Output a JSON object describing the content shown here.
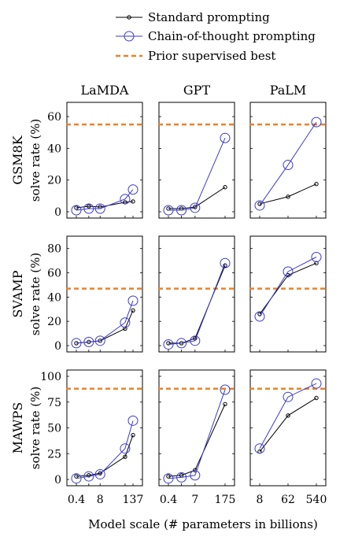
{
  "chart_data": {
    "type": "line",
    "legend": {
      "placement": "top",
      "entries": [
        {
          "label": "Standard prompting",
          "color": "#000000",
          "marker": "small-circle",
          "style": "solid"
        },
        {
          "label": "Chain-of-thought prompting",
          "color": "#3a3ad0",
          "marker": "large-circle",
          "style": "solid"
        },
        {
          "label": "Prior supervised best",
          "color": "#e8832a",
          "style": "dashed"
        }
      ]
    },
    "columns": [
      {
        "title": "LaMDA",
        "x_ticks": [
          "0.4",
          "8",
          "137"
        ]
      },
      {
        "title": "GPT",
        "x_ticks": [
          "0.4",
          "7",
          "175"
        ]
      },
      {
        "title": "PaLM",
        "x_ticks": [
          "8",
          "62",
          "540"
        ]
      }
    ],
    "rows": [
      {
        "dataset": "GSM8K",
        "ylabel": "solve rate (%)",
        "ylim": [
          0,
          65
        ],
        "y_ticks": [
          0,
          20,
          40,
          60
        ],
        "prior_best": 55
      },
      {
        "dataset": "SVAMP",
        "ylabel": "solve rate (%)",
        "ylim": [
          0,
          85
        ],
        "y_ticks": [
          0,
          20,
          40,
          60,
          80
        ],
        "prior_best": 47
      },
      {
        "dataset": "MAWPS",
        "ylabel": "solve rate (%)",
        "ylim": [
          0,
          100
        ],
        "y_ticks": [
          0,
          25,
          50,
          75,
          100
        ],
        "prior_best": 88
      }
    ],
    "xlabel": "Model scale (# parameters in billions)",
    "panels": [
      {
        "row": 0,
        "col": 0,
        "standard": [
          2.5,
          3.5,
          3,
          6,
          6.5
        ],
        "cot": [
          1,
          2,
          2,
          8,
          14
        ]
      },
      {
        "row": 0,
        "col": 1,
        "standard": [
          2,
          2,
          3,
          15.5
        ],
        "cot": [
          1,
          1,
          2.5,
          46.5
        ]
      },
      {
        "row": 0,
        "col": 2,
        "standard": [
          5,
          9.5,
          17.5
        ],
        "cot": [
          4,
          29.5,
          56.5
        ]
      },
      {
        "row": 1,
        "col": 0,
        "standard": [
          2,
          3,
          4,
          14,
          29
        ],
        "cot": [
          2,
          3,
          4,
          19,
          37
        ]
      },
      {
        "row": 1,
        "col": 1,
        "standard": [
          2,
          2,
          6,
          66
        ],
        "cot": [
          1,
          2,
          4,
          68
        ]
      },
      {
        "row": 1,
        "col": 2,
        "standard": [
          26,
          58,
          68
        ],
        "cot": [
          24,
          61,
          73
        ]
      },
      {
        "row": 2,
        "col": 0,
        "standard": [
          3,
          4,
          6,
          22,
          43
        ],
        "cot": [
          1,
          3,
          5,
          30,
          57
        ]
      },
      {
        "row": 2,
        "col": 1,
        "standard": [
          3,
          4,
          9,
          73
        ],
        "cot": [
          1,
          2,
          4,
          87
        ]
      },
      {
        "row": 2,
        "col": 2,
        "standard": [
          27,
          62,
          79
        ],
        "cot": [
          30,
          80,
          93
        ]
      }
    ]
  }
}
